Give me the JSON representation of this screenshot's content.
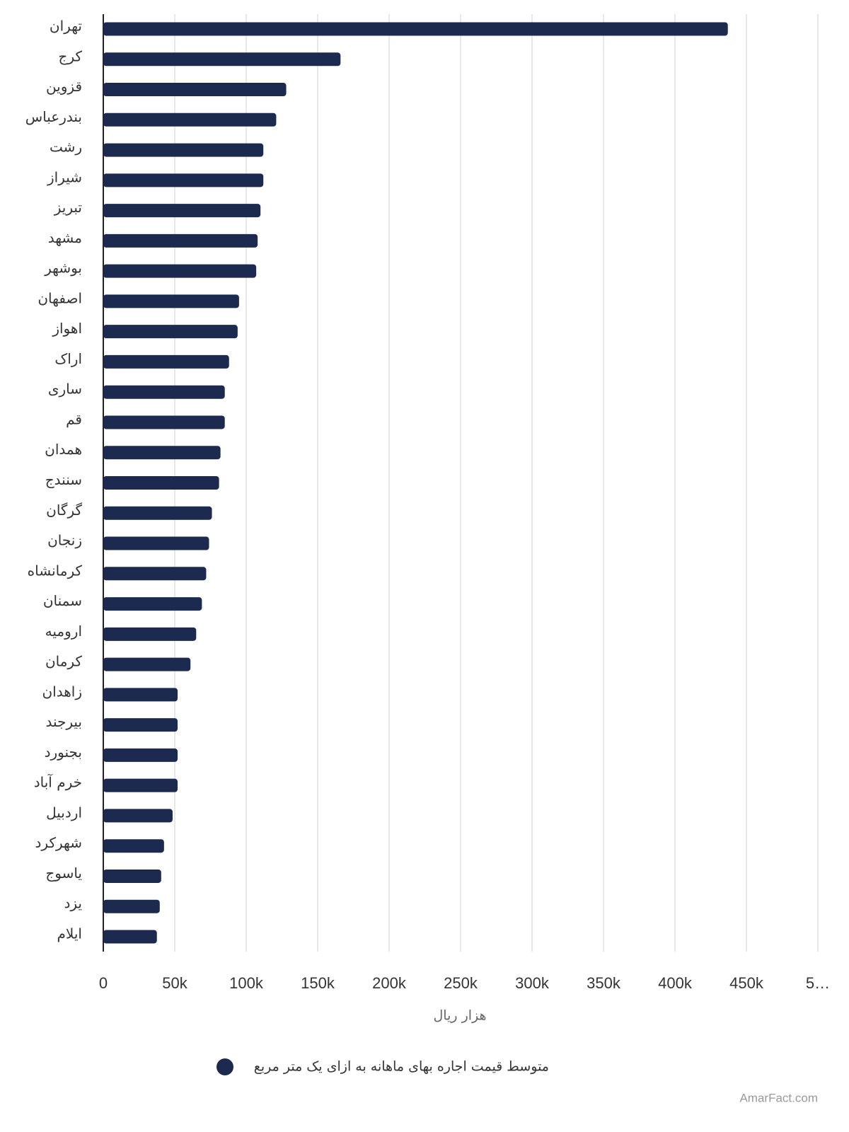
{
  "chart_data": {
    "type": "bar",
    "orientation": "horizontal",
    "categories": [
      "تهران",
      "کرج",
      "قزوین",
      "بندرعباس",
      "رشت",
      "شیراز",
      "تبریز",
      "مشهد",
      "بوشهر",
      "اصفهان",
      "اهواز",
      "اراک",
      "ساری",
      "قم",
      "همدان",
      "سنندج",
      "گرگان",
      "زنجان",
      "کرمانشاه",
      "سمنان",
      "ارومیه",
      "کرمان",
      "زاهدان",
      "بیرجند",
      "بجنورد",
      "خرم آباد",
      "اردبیل",
      "شهرکرد",
      "یاسوج",
      "یزد",
      "ایلام"
    ],
    "series": [
      {
        "name": "متوسط قیمت اجاره بهای ماهانه به ازای یک متر مربع",
        "color": "#1c2a4f",
        "values": [
          437000,
          166000,
          128000,
          121000,
          112000,
          112000,
          110000,
          108000,
          107000,
          95000,
          94000,
          88000,
          85000,
          85000,
          82000,
          81000,
          76000,
          74000,
          72000,
          69000,
          65000,
          61000,
          52000,
          52000,
          52000,
          52000,
          48500,
          42500,
          40500,
          39500,
          37500
        ]
      }
    ],
    "xlabel": "هزار ریال",
    "xlim": [
      0,
      500000
    ],
    "xticks": [
      0,
      {
        "value": 50000,
        "label": "50k"
      },
      {
        "value": 100000,
        "label": "100k"
      },
      {
        "value": 150000,
        "label": "150k"
      },
      {
        "value": 200000,
        "label": "200k"
      },
      {
        "value": 250000,
        "label": "250k"
      },
      {
        "value": 300000,
        "label": "300k"
      },
      {
        "value": 350000,
        "label": "350k"
      },
      {
        "value": 400000,
        "label": "400k"
      },
      {
        "value": 450000,
        "label": "450k"
      },
      {
        "value": 500000,
        "label": "5…"
      }
    ],
    "grid": true,
    "legend": "bottom",
    "watermark": "AmarFact.com"
  }
}
